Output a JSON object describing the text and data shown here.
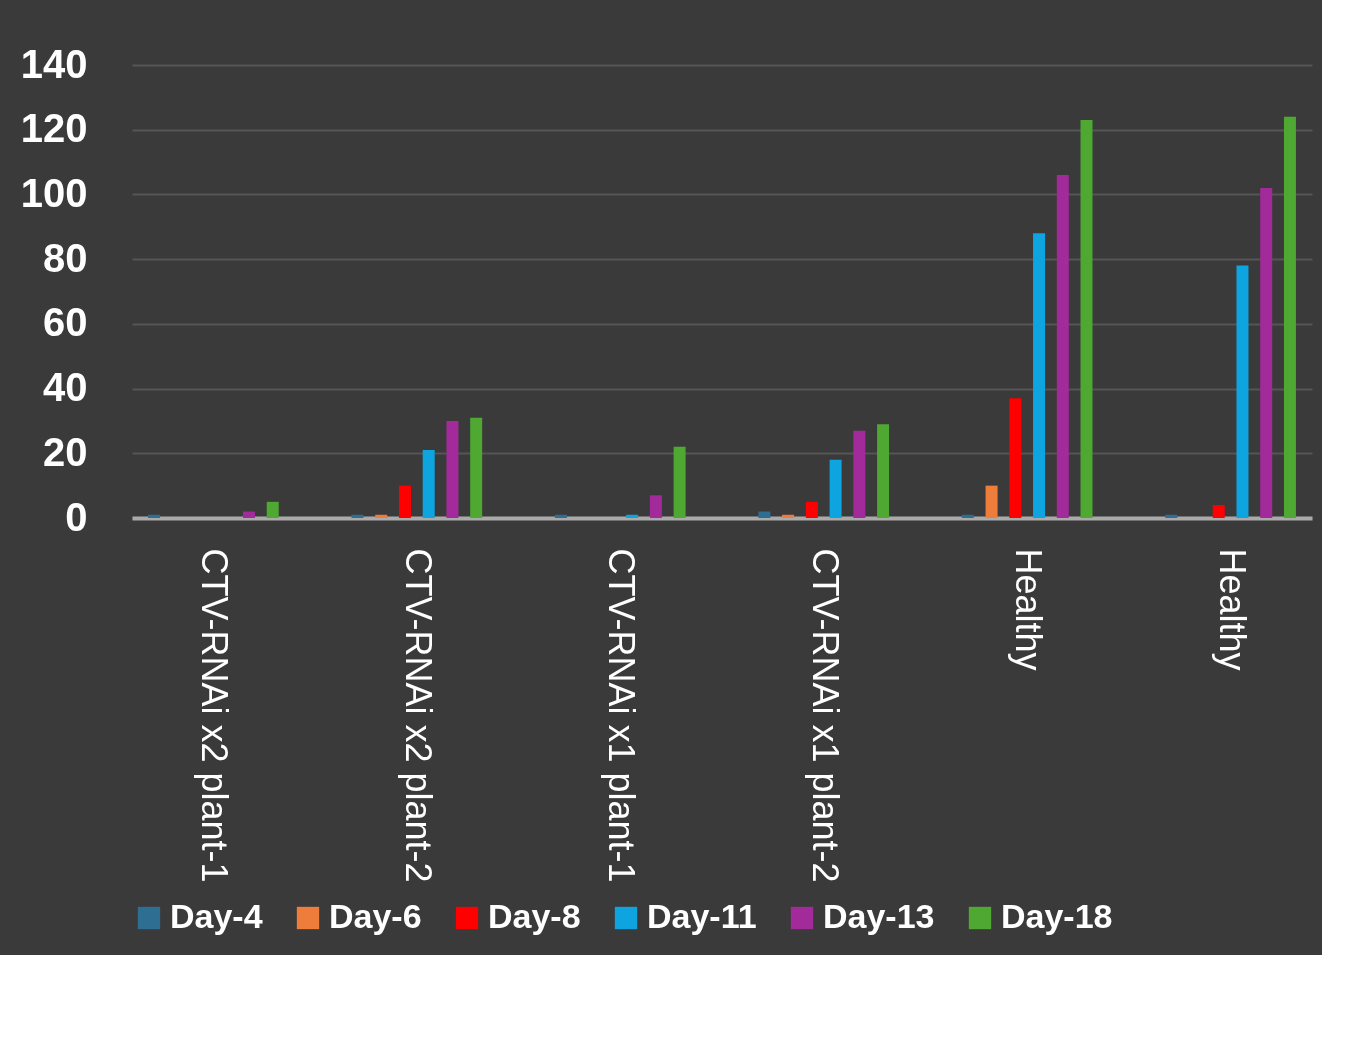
{
  "chart_data": {
    "type": "bar",
    "categories": [
      "CTV-RNAi x2 plant-1",
      "CTV-RNAi x2 plant-2",
      "CTV-RNAi x1 plant-1",
      "CTV-RNAi x1 plant-2",
      "Healthy",
      "Healthy"
    ],
    "series": [
      {
        "name": "Day-4",
        "color": "#2f6e93",
        "values": [
          1,
          1,
          1,
          2,
          1,
          1
        ]
      },
      {
        "name": "Day-6",
        "color": "#ee7d3b",
        "values": [
          0,
          1,
          0,
          1,
          10,
          0
        ]
      },
      {
        "name": "Day-8",
        "color": "#ff0000",
        "values": [
          0,
          10,
          0,
          5,
          37,
          4
        ]
      },
      {
        "name": "Day-11",
        "color": "#0ea4e0",
        "values": [
          0,
          21,
          1,
          18,
          88,
          78
        ]
      },
      {
        "name": "Day-13",
        "color": "#a32a9a",
        "values": [
          2,
          30,
          7,
          27,
          106,
          102
        ]
      },
      {
        "name": "Day-18",
        "color": "#4ea832",
        "values": [
          5,
          31,
          22,
          29,
          123,
          124
        ]
      }
    ],
    "ylim": [
      0,
      140
    ],
    "yticks": [
      0,
      20,
      40,
      60,
      80,
      100,
      120,
      140
    ],
    "grid": "y",
    "legend": "bottom"
  }
}
